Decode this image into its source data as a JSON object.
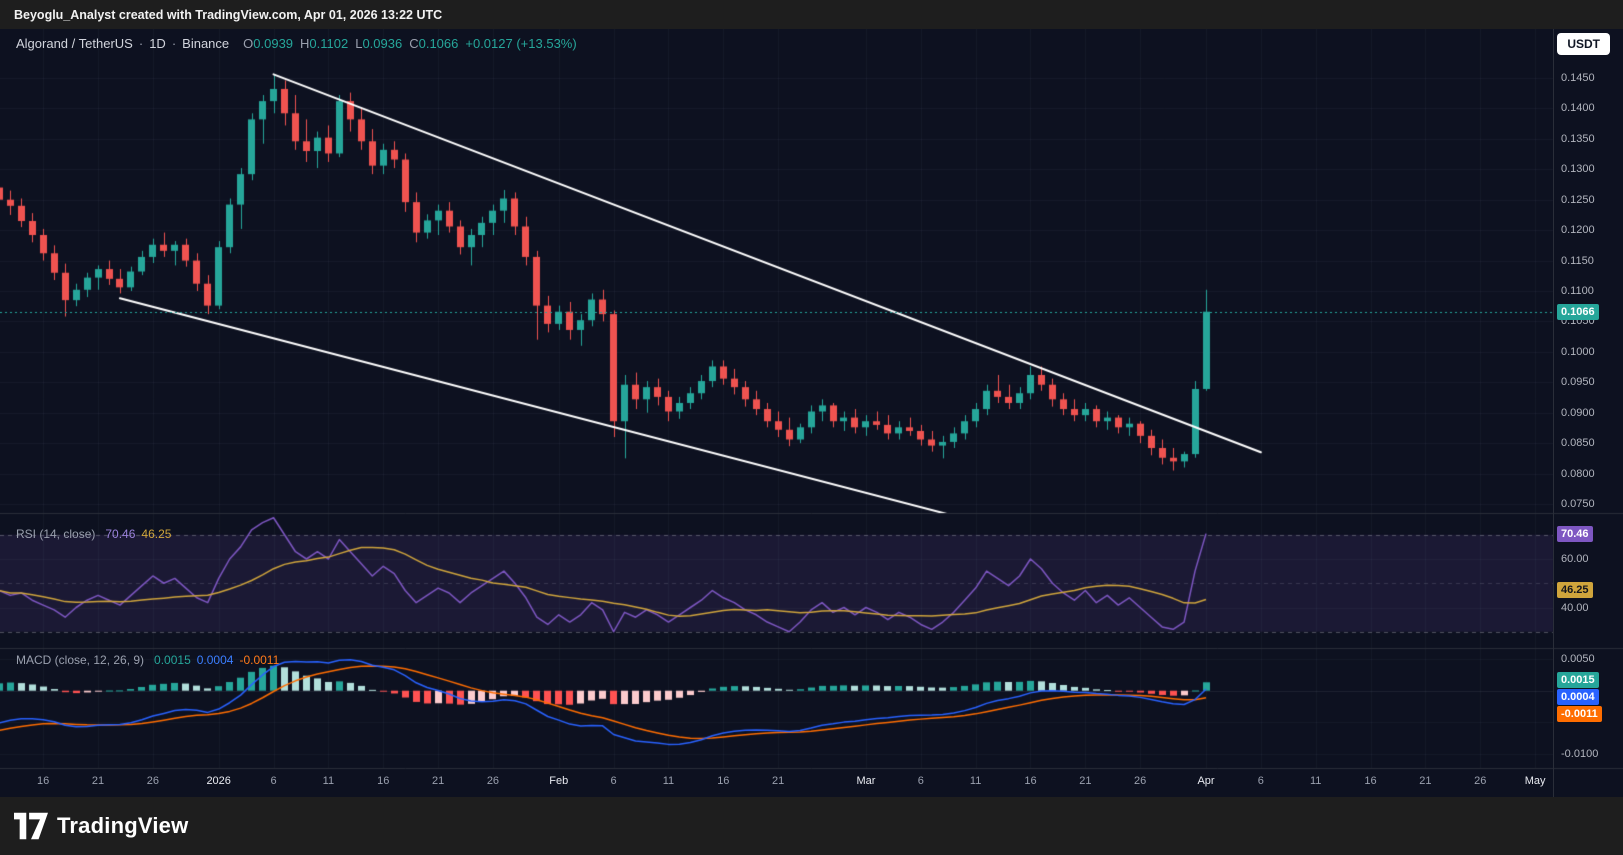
{
  "attribution": {
    "text": "Beyoglu_Analyst created with TradingView.com, Apr 01, 2026 13:22 UTC"
  },
  "header": {
    "symbol": "Algorand / TetherUS",
    "sep": "·",
    "interval": "1D",
    "exchange": "Binance",
    "o_label": "O",
    "open": "0.0939",
    "h_label": "H",
    "high": "0.1102",
    "l_label": "L",
    "low": "0.0936",
    "c_label": "C",
    "close": "0.1066",
    "change": "+0.0127 (+13.53%)",
    "currency_button": "USDT"
  },
  "panes": {
    "rsi": {
      "label": "RSI (14, close)",
      "value": "70.46",
      "ma_value": "46.25"
    },
    "macd": {
      "label": "MACD (close, 12, 26, 9)",
      "hist_value": "0.0015",
      "macd_value": "0.0004",
      "signal_value": "-0.0011"
    }
  },
  "price_axis": {
    "last_price": "0.1066",
    "ticks": [
      "0.1450",
      "0.1400",
      "0.1350",
      "0.1300",
      "0.1250",
      "0.1200",
      "0.1150",
      "0.1100",
      "0.1050",
      "0.1000",
      "0.0950",
      "0.0900",
      "0.0850",
      "0.0800",
      "0.0750"
    ],
    "rsi_ticks": [
      {
        "value": 60,
        "label": "60.00"
      },
      {
        "value": 40,
        "label": "40.00"
      }
    ],
    "macd_ticks": [
      {
        "value": 0.005,
        "label": "0.0050"
      },
      {
        "value": -0.01,
        "label": "-0.0100"
      }
    ]
  },
  "footer": {
    "brand": "TradingView"
  },
  "colors": {
    "up": "#26a69a",
    "down": "#ef5350",
    "trendline": "#ffffff",
    "last_price_line": "#26a69a",
    "rsi_line": "#7e57c2",
    "rsi_ma": "#d0a53c",
    "rsi_band_fill": "rgba(126,87,194,0.13)",
    "macd_line": "#2962ff",
    "macd_signal": "#ff6d00",
    "hist_up_strong": "#26a69a",
    "hist_up_weak": "#b2dfdb",
    "hist_down_strong": "#ff5252",
    "hist_down_weak": "#fccbcd"
  },
  "chart_data": {
    "type": "candlestick",
    "title": "Algorand / TetherUS",
    "exchange": "Binance",
    "interval": "1D",
    "start_date": "2025-12-12",
    "price_range": [
      0.075,
      0.145
    ],
    "rsi_levels": [
      70,
      50,
      30
    ],
    "macd_params": [
      12,
      26,
      9
    ],
    "rsi_params": [
      14
    ],
    "last_price": 0.1066,
    "last_values": {
      "rsi": 70.46,
      "rsi_ma": 46.25,
      "macd_hist": 0.0015,
      "macd": 0.0004,
      "signal": -0.0011
    },
    "candles": [
      [
        0.127,
        0.1285,
        0.124,
        0.125
      ],
      [
        0.125,
        0.1265,
        0.1225,
        0.124
      ],
      [
        0.124,
        0.1252,
        0.1205,
        0.1215
      ],
      [
        0.1215,
        0.1228,
        0.118,
        0.1192
      ],
      [
        0.1192,
        0.1202,
        0.115,
        0.1162
      ],
      [
        0.1162,
        0.1175,
        0.1118,
        0.113
      ],
      [
        0.113,
        0.1145,
        0.1058,
        0.1085
      ],
      [
        0.1085,
        0.1112,
        0.1075,
        0.1102
      ],
      [
        0.1102,
        0.113,
        0.109,
        0.1122
      ],
      [
        0.1122,
        0.1142,
        0.1102,
        0.1136
      ],
      [
        0.1136,
        0.115,
        0.111,
        0.112
      ],
      [
        0.112,
        0.1136,
        0.1096,
        0.1106
      ],
      [
        0.1106,
        0.114,
        0.11,
        0.1132
      ],
      [
        0.1132,
        0.1166,
        0.1126,
        0.1156
      ],
      [
        0.1156,
        0.1186,
        0.1146,
        0.1176
      ],
      [
        0.1176,
        0.1196,
        0.1156,
        0.1166
      ],
      [
        0.1166,
        0.1182,
        0.1142,
        0.1176
      ],
      [
        0.1176,
        0.1186,
        0.114,
        0.115
      ],
      [
        0.115,
        0.1162,
        0.11,
        0.1112
      ],
      [
        0.1112,
        0.1126,
        0.1062,
        0.1076
      ],
      [
        0.1076,
        0.1182,
        0.107,
        0.1172
      ],
      [
        0.1172,
        0.1252,
        0.1162,
        0.1242
      ],
      [
        0.1242,
        0.1302,
        0.1202,
        0.1292
      ],
      [
        0.1292,
        0.1392,
        0.1282,
        0.1382
      ],
      [
        0.1382,
        0.1422,
        0.1342,
        0.1412
      ],
      [
        0.1412,
        0.1456,
        0.1392,
        0.1432
      ],
      [
        0.1432,
        0.1446,
        0.1372,
        0.1392
      ],
      [
        0.1392,
        0.1422,
        0.1332,
        0.1346
      ],
      [
        0.1346,
        0.1382,
        0.1312,
        0.133
      ],
      [
        0.133,
        0.1362,
        0.1302,
        0.1352
      ],
      [
        0.1352,
        0.1372,
        0.1312,
        0.1326
      ],
      [
        0.1326,
        0.1422,
        0.132,
        0.1412
      ],
      [
        0.1412,
        0.1426,
        0.1362,
        0.1382
      ],
      [
        0.1382,
        0.1402,
        0.1332,
        0.1346
      ],
      [
        0.1346,
        0.1366,
        0.1292,
        0.1306
      ],
      [
        0.1306,
        0.1342,
        0.1292,
        0.1332
      ],
      [
        0.1332,
        0.1346,
        0.1302,
        0.1316
      ],
      [
        0.1316,
        0.1326,
        0.123,
        0.1246
      ],
      [
        0.1246,
        0.1262,
        0.118,
        0.1196
      ],
      [
        0.1196,
        0.1226,
        0.1186,
        0.1216
      ],
      [
        0.1216,
        0.1242,
        0.1192,
        0.1232
      ],
      [
        0.1232,
        0.1246,
        0.1196,
        0.1206
      ],
      [
        0.1206,
        0.1216,
        0.116,
        0.1172
      ],
      [
        0.1172,
        0.1202,
        0.1142,
        0.1192
      ],
      [
        0.1192,
        0.1222,
        0.1172,
        0.1212
      ],
      [
        0.1212,
        0.1242,
        0.1192,
        0.1232
      ],
      [
        0.1232,
        0.1266,
        0.1212,
        0.1252
      ],
      [
        0.1252,
        0.1262,
        0.1192,
        0.1206
      ],
      [
        0.1206,
        0.1222,
        0.1142,
        0.1156
      ],
      [
        0.1156,
        0.1166,
        0.102,
        0.1076
      ],
      [
        0.1076,
        0.1092,
        0.1032,
        0.1046
      ],
      [
        0.1046,
        0.1076,
        0.1036,
        0.1066
      ],
      [
        0.1066,
        0.1082,
        0.102,
        0.1036
      ],
      [
        0.1036,
        0.1062,
        0.101,
        0.1052
      ],
      [
        0.1052,
        0.1096,
        0.1042,
        0.1086
      ],
      [
        0.1086,
        0.1102,
        0.105,
        0.1062
      ],
      [
        0.1062,
        0.1068,
        0.086,
        0.0886
      ],
      [
        0.0886,
        0.0962,
        0.0825,
        0.0946
      ],
      [
        0.0946,
        0.0966,
        0.0906,
        0.0922
      ],
      [
        0.0922,
        0.0952,
        0.09,
        0.0942
      ],
      [
        0.0942,
        0.0956,
        0.0912,
        0.0926
      ],
      [
        0.0926,
        0.0936,
        0.0886,
        0.0902
      ],
      [
        0.0902,
        0.0926,
        0.089,
        0.0916
      ],
      [
        0.0916,
        0.0942,
        0.0906,
        0.0932
      ],
      [
        0.0932,
        0.0962,
        0.0922,
        0.0952
      ],
      [
        0.0952,
        0.0986,
        0.0942,
        0.0976
      ],
      [
        0.0976,
        0.0986,
        0.0946,
        0.0956
      ],
      [
        0.0956,
        0.0972,
        0.093,
        0.0942
      ],
      [
        0.0942,
        0.0952,
        0.091,
        0.0922
      ],
      [
        0.0922,
        0.0936,
        0.0896,
        0.0906
      ],
      [
        0.0906,
        0.0916,
        0.0876,
        0.0886
      ],
      [
        0.0886,
        0.0902,
        0.086,
        0.0872
      ],
      [
        0.0872,
        0.0892,
        0.0845,
        0.0856
      ],
      [
        0.0856,
        0.0882,
        0.085,
        0.0876
      ],
      [
        0.0876,
        0.0912,
        0.0866,
        0.0902
      ],
      [
        0.0902,
        0.0922,
        0.0886,
        0.0912
      ],
      [
        0.0912,
        0.0916,
        0.0876,
        0.0886
      ],
      [
        0.0886,
        0.0902,
        0.087,
        0.0892
      ],
      [
        0.0892,
        0.0906,
        0.0866,
        0.0876
      ],
      [
        0.0876,
        0.0896,
        0.0862,
        0.0886
      ],
      [
        0.0886,
        0.0902,
        0.0872,
        0.088
      ],
      [
        0.088,
        0.0896,
        0.0856,
        0.0866
      ],
      [
        0.0866,
        0.0886,
        0.0856,
        0.0876
      ],
      [
        0.0876,
        0.0892,
        0.0862,
        0.087
      ],
      [
        0.087,
        0.088,
        0.0846,
        0.0856
      ],
      [
        0.0856,
        0.087,
        0.0836,
        0.0846
      ],
      [
        0.0846,
        0.0862,
        0.0825,
        0.0852
      ],
      [
        0.0852,
        0.0876,
        0.0842,
        0.0866
      ],
      [
        0.0866,
        0.0896,
        0.0856,
        0.0886
      ],
      [
        0.0886,
        0.0916,
        0.0876,
        0.0906
      ],
      [
        0.0906,
        0.0946,
        0.0896,
        0.0936
      ],
      [
        0.0936,
        0.0962,
        0.0916,
        0.0926
      ],
      [
        0.0926,
        0.0946,
        0.0906,
        0.0916
      ],
      [
        0.0916,
        0.0942,
        0.0906,
        0.0932
      ],
      [
        0.0932,
        0.0976,
        0.0922,
        0.0962
      ],
      [
        0.0962,
        0.0976,
        0.0936,
        0.0946
      ],
      [
        0.0946,
        0.0956,
        0.091,
        0.0922
      ],
      [
        0.0922,
        0.0932,
        0.0896,
        0.0906
      ],
      [
        0.0906,
        0.0922,
        0.0886,
        0.0896
      ],
      [
        0.0896,
        0.0916,
        0.0886,
        0.0906
      ],
      [
        0.0906,
        0.0912,
        0.0876,
        0.0886
      ],
      [
        0.0886,
        0.0902,
        0.0872,
        0.0892
      ],
      [
        0.0892,
        0.0896,
        0.0866,
        0.0876
      ],
      [
        0.0876,
        0.0892,
        0.0862,
        0.0882
      ],
      [
        0.0882,
        0.0886,
        0.085,
        0.0862
      ],
      [
        0.0862,
        0.0872,
        0.083,
        0.0842
      ],
      [
        0.0842,
        0.0856,
        0.0815,
        0.0826
      ],
      [
        0.0826,
        0.0842,
        0.0805,
        0.082
      ],
      [
        0.082,
        0.0836,
        0.081,
        0.0832
      ],
      [
        0.0832,
        0.0952,
        0.0826,
        0.0939
      ],
      [
        0.0939,
        0.1102,
        0.0936,
        0.1066
      ]
    ],
    "rsi": [
      47,
      45,
      46,
      43,
      41,
      39,
      36,
      40,
      43,
      45,
      43,
      41,
      45,
      49,
      53,
      50,
      52,
      48,
      44,
      42,
      52,
      60,
      65,
      72,
      75,
      77,
      70,
      63,
      60,
      63,
      60,
      68,
      63,
      58,
      53,
      57,
      54,
      47,
      42,
      45,
      48,
      46,
      42,
      46,
      49,
      52,
      55,
      50,
      44,
      36,
      33,
      37,
      34,
      37,
      42,
      39,
      30,
      38,
      36,
      39,
      37,
      34,
      37,
      40,
      43,
      47,
      44,
      42,
      39,
      37,
      34,
      32,
      30,
      34,
      39,
      42,
      38,
      40,
      37,
      40,
      38,
      35,
      38,
      36,
      33,
      31,
      34,
      38,
      43,
      48,
      55,
      52,
      49,
      53,
      60,
      56,
      50,
      46,
      43,
      47,
      42,
      45,
      41,
      44,
      40,
      36,
      32,
      31,
      34,
      55,
      70.46
    ],
    "trendlines": [
      {
        "j1": 25,
        "p1": 0.1456,
        "j2": 115,
        "p2": 0.0835
      },
      {
        "j1": 11,
        "p1": 0.1088,
        "j2": 88,
        "p2": 0.0726
      }
    ],
    "time_ticks": [
      {
        "j": 4,
        "label": "16"
      },
      {
        "j": 9,
        "label": "21"
      },
      {
        "j": 14,
        "label": "26"
      },
      {
        "j": 20,
        "label": "2026",
        "major": true
      },
      {
        "j": 25,
        "label": "6"
      },
      {
        "j": 30,
        "label": "11"
      },
      {
        "j": 35,
        "label": "16"
      },
      {
        "j": 40,
        "label": "21"
      },
      {
        "j": 45,
        "label": "26"
      },
      {
        "j": 51,
        "label": "Feb",
        "major": true
      },
      {
        "j": 56,
        "label": "6"
      },
      {
        "j": 61,
        "label": "11"
      },
      {
        "j": 66,
        "label": "16"
      },
      {
        "j": 71,
        "label": "21"
      },
      {
        "j": 79,
        "label": "Mar",
        "major": true
      },
      {
        "j": 84,
        "label": "6"
      },
      {
        "j": 89,
        "label": "11"
      },
      {
        "j": 94,
        "label": "16"
      },
      {
        "j": 99,
        "label": "21"
      },
      {
        "j": 104,
        "label": "26"
      },
      {
        "j": 110,
        "label": "Apr",
        "major": true
      },
      {
        "j": 115,
        "label": "6"
      },
      {
        "j": 120,
        "label": "11"
      },
      {
        "j": 125,
        "label": "16"
      },
      {
        "j": 130,
        "label": "21"
      },
      {
        "j": 135,
        "label": "26"
      },
      {
        "j": 140,
        "label": "May",
        "major": true
      }
    ]
  }
}
